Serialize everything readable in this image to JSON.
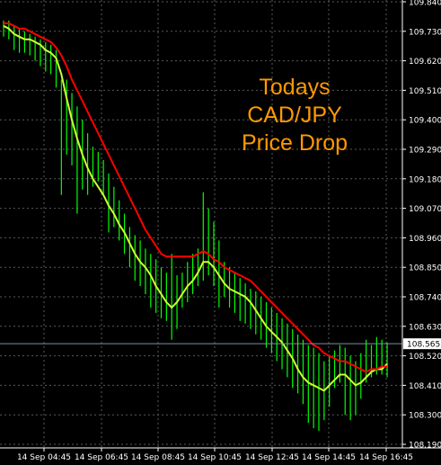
{
  "chart_data": {
    "type": "line",
    "annotation": [
      "Todays",
      "CAD/JPY",
      "Price Drop"
    ],
    "current_price": "108.565",
    "ylim": [
      108.19,
      109.84
    ],
    "y_ticks": [
      "109.840",
      "109.730",
      "109.620",
      "109.510",
      "109.400",
      "109.290",
      "109.180",
      "109.070",
      "108.960",
      "108.850",
      "108.740",
      "108.630",
      "108.520",
      "108.410",
      "108.300",
      "108.190"
    ],
    "x_ticks": [
      "14 Sep 04:45",
      "14 Sep 06:45",
      "14 Sep 08:45",
      "14 Sep 10:45",
      "14 Sep 12:45",
      "14 Sep 14:45",
      "14 Sep 16:45"
    ],
    "grid": true,
    "colors": {
      "background": "#000000",
      "grid": "#5a5a5a",
      "bars": "#00ff00",
      "fast_line": "#ccff33",
      "slow_line": "#ff0000",
      "axis_text": "#ffffff",
      "price_label_bg": "#ffffff",
      "price_label_text": "#000000",
      "price_line": "#7f8f9f",
      "annotation": "#ff9900"
    },
    "bars": [
      {
        "h": 109.77,
        "l": 109.71
      },
      {
        "h": 109.77,
        "l": 109.7
      },
      {
        "h": 109.75,
        "l": 109.66
      },
      {
        "h": 109.74,
        "l": 109.65
      },
      {
        "h": 109.73,
        "l": 109.65
      },
      {
        "h": 109.72,
        "l": 109.64
      },
      {
        "h": 109.71,
        "l": 109.62
      },
      {
        "h": 109.7,
        "l": 109.6
      },
      {
        "h": 109.69,
        "l": 109.58
      },
      {
        "h": 109.68,
        "l": 109.57
      },
      {
        "h": 109.66,
        "l": 109.52
      },
      {
        "h": 109.55,
        "l": 109.12
      },
      {
        "h": 109.55,
        "l": 109.27
      },
      {
        "h": 109.5,
        "l": 109.23
      },
      {
        "h": 109.45,
        "l": 109.05
      },
      {
        "h": 109.4,
        "l": 109.14
      },
      {
        "h": 109.35,
        "l": 109.12
      },
      {
        "h": 109.3,
        "l": 109.15
      },
      {
        "h": 109.28,
        "l": 109.17
      },
      {
        "h": 109.25,
        "l": 109.12
      },
      {
        "h": 109.2,
        "l": 108.98
      },
      {
        "h": 109.15,
        "l": 109.0
      },
      {
        "h": 109.1,
        "l": 108.95
      },
      {
        "h": 109.05,
        "l": 108.9
      },
      {
        "h": 109.0,
        "l": 108.85
      },
      {
        "h": 108.97,
        "l": 108.8
      },
      {
        "h": 108.95,
        "l": 108.78
      },
      {
        "h": 108.92,
        "l": 108.75
      },
      {
        "h": 108.9,
        "l": 108.7
      },
      {
        "h": 108.88,
        "l": 108.68
      },
      {
        "h": 108.85,
        "l": 108.66
      },
      {
        "h": 108.83,
        "l": 108.65
      },
      {
        "h": 108.9,
        "l": 108.58
      },
      {
        "h": 108.82,
        "l": 108.62
      },
      {
        "h": 108.83,
        "l": 108.7
      },
      {
        "h": 108.87,
        "l": 108.72
      },
      {
        "h": 108.9,
        "l": 108.75
      },
      {
        "h": 108.92,
        "l": 108.78
      },
      {
        "h": 109.13,
        "l": 108.8
      },
      {
        "h": 109.07,
        "l": 108.82
      },
      {
        "h": 109.02,
        "l": 108.78
      },
      {
        "h": 108.95,
        "l": 108.7
      },
      {
        "h": 108.87,
        "l": 108.74
      },
      {
        "h": 108.85,
        "l": 108.7
      },
      {
        "h": 108.83,
        "l": 108.68
      },
      {
        "h": 108.81,
        "l": 108.65
      },
      {
        "h": 108.79,
        "l": 108.64
      },
      {
        "h": 108.77,
        "l": 108.62
      },
      {
        "h": 108.76,
        "l": 108.6
      },
      {
        "h": 108.74,
        "l": 108.58
      },
      {
        "h": 108.72,
        "l": 108.55
      },
      {
        "h": 108.7,
        "l": 108.53
      },
      {
        "h": 108.68,
        "l": 108.5
      },
      {
        "h": 108.66,
        "l": 108.47
      },
      {
        "h": 108.64,
        "l": 108.44
      },
      {
        "h": 108.62,
        "l": 108.4
      },
      {
        "h": 108.6,
        "l": 108.38
      },
      {
        "h": 108.58,
        "l": 108.34
      },
      {
        "h": 108.56,
        "l": 108.27
      },
      {
        "h": 108.55,
        "l": 108.25
      },
      {
        "h": 108.53,
        "l": 108.24
      },
      {
        "h": 108.5,
        "l": 108.28
      },
      {
        "h": 108.52,
        "l": 108.33
      },
      {
        "h": 108.54,
        "l": 108.4
      },
      {
        "h": 108.56,
        "l": 108.42
      },
      {
        "h": 108.55,
        "l": 108.3
      },
      {
        "h": 108.52,
        "l": 108.28
      },
      {
        "h": 108.5,
        "l": 108.3
      },
      {
        "h": 108.53,
        "l": 108.36
      },
      {
        "h": 108.58,
        "l": 108.42
      },
      {
        "h": 108.56,
        "l": 108.44
      },
      {
        "h": 108.59,
        "l": 108.45
      },
      {
        "h": 108.58,
        "l": 108.45
      },
      {
        "h": 108.57,
        "l": 108.44
      }
    ],
    "series": [
      {
        "values": [
          109.75,
          109.74,
          109.72,
          109.71,
          109.7,
          109.7,
          109.69,
          109.68,
          109.66,
          109.65,
          109.63,
          109.57,
          109.48,
          109.4,
          109.33,
          109.27,
          109.22,
          109.18,
          109.15,
          109.12,
          109.08,
          109.05,
          109.01,
          108.98,
          108.94,
          108.9,
          108.87,
          108.85,
          108.82,
          108.78,
          108.75,
          108.72,
          108.7,
          108.72,
          108.75,
          108.78,
          108.8,
          108.83,
          108.87,
          108.87,
          108.85,
          108.82,
          108.79,
          108.77,
          108.76,
          108.75,
          108.74,
          108.72,
          108.69,
          108.66,
          108.63,
          108.61,
          108.59,
          108.57,
          108.54,
          108.51,
          108.47,
          108.44,
          108.42,
          108.41,
          108.4,
          108.39,
          108.41,
          108.43,
          108.45,
          108.45,
          108.43,
          108.41,
          108.42,
          108.44,
          108.46,
          108.47,
          108.47,
          108.49
        ]
      },
      {
        "values": [
          109.76,
          109.76,
          109.75,
          109.74,
          109.74,
          109.73,
          109.72,
          109.71,
          109.7,
          109.69,
          109.67,
          109.64,
          109.6,
          109.55,
          109.51,
          109.47,
          109.43,
          109.39,
          109.35,
          109.31,
          109.27,
          109.23,
          109.19,
          109.15,
          109.11,
          109.07,
          109.03,
          108.99,
          108.96,
          108.93,
          108.9,
          108.89,
          108.89,
          108.89,
          108.89,
          108.89,
          108.89,
          108.9,
          108.91,
          108.9,
          108.88,
          108.87,
          108.85,
          108.84,
          108.83,
          108.82,
          108.81,
          108.8,
          108.78,
          108.76,
          108.74,
          108.72,
          108.7,
          108.68,
          108.66,
          108.64,
          108.62,
          108.6,
          108.58,
          108.56,
          108.55,
          108.53,
          108.52,
          108.51,
          108.5,
          108.5,
          108.49,
          108.48,
          108.47,
          108.46,
          108.47,
          108.47,
          108.48,
          108.48
        ]
      }
    ]
  }
}
